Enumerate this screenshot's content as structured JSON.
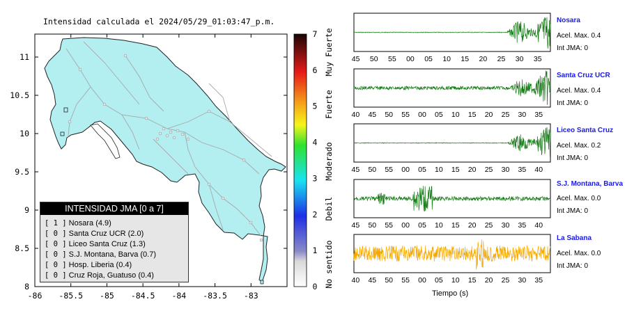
{
  "title": "Intensidad calculada el 2024/05/29_01:03:47_p.m.",
  "colors": {
    "land": "#b3eef0",
    "trace_green": "#137a13",
    "trace_orange": "#f5a800",
    "station_name": "#1a1ae6"
  },
  "colorbar": {
    "ticks": [
      "0",
      "1",
      "2",
      "3",
      "4",
      "5",
      "6",
      "7"
    ],
    "categories": [
      "No sentido",
      "Debil",
      "Moderado",
      "Fuerte",
      "Muy Fuerte"
    ]
  },
  "legend": {
    "header": "INTENSIDAD JMA [0 a 7]",
    "items": [
      {
        "rank": "[ 1 ]",
        "label": "Nosara (4.9)"
      },
      {
        "rank": "[ 0 ]",
        "label": "Santa Cruz UCR (2.0)"
      },
      {
        "rank": "[ 0 ]",
        "label": "Liceo Santa Cruz (1.3)"
      },
      {
        "rank": "[ 0 ]",
        "label": "S.J. Montana, Barva (0.7)"
      },
      {
        "rank": "[ 0 ]",
        "label": "Hosp. Liberia (0.4)"
      },
      {
        "rank": "[ 0 ]",
        "label": "Cruz Roja, Guatuso (0.4)"
      }
    ]
  },
  "stations": [
    {
      "name": "Nosara",
      "acel": "Acel. Max. 0.4",
      "int": "Int JMA: 0",
      "color": "trace_green",
      "ticks": [
        "45",
        "50",
        "55",
        "00",
        "05",
        "10",
        "15",
        "20",
        "25",
        "30",
        "35"
      ]
    },
    {
      "name": "Santa Cruz UCR",
      "acel": "Acel. Max. 0.4",
      "int": "Int JMA: 0",
      "color": "trace_green",
      "ticks": [
        "40",
        "45",
        "50",
        "55",
        "00",
        "05",
        "10",
        "15",
        "20",
        "25",
        "30",
        "35"
      ]
    },
    {
      "name": "Liceo Santa Cruz",
      "acel": "Acel. Max. 0.2",
      "int": "Int JMA: 0",
      "color": "trace_green",
      "ticks": [
        "45",
        "50",
        "55",
        "00",
        "05",
        "10",
        "15",
        "20",
        "25",
        "30",
        "35",
        "40"
      ]
    },
    {
      "name": "S.J. Montana, Barva",
      "acel": "Acel. Max. 0.0",
      "int": "Int JMA: 0",
      "color": "trace_green",
      "ticks": [
        "45",
        "50",
        "55",
        "00",
        "05",
        "10",
        "15",
        "20",
        "25",
        "30",
        "35",
        "40"
      ]
    },
    {
      "name": "La Sabana",
      "acel": "Acel. Max. 0.0",
      "int": "Int JMA: 0",
      "color": "trace_orange",
      "ticks": [
        "40",
        "45",
        "50",
        "55",
        "00",
        "05",
        "10",
        "15",
        "20",
        "25",
        "30",
        "35"
      ]
    }
  ],
  "xaxis_label": "Tiempo (s)",
  "chart_data": [
    {
      "type": "heatmap",
      "title": "Intensidad calculada el 2024/05/29_01:03:47_p.m.",
      "xlim": [
        -86,
        -82.5
      ],
      "ylim": [
        8,
        11.3
      ],
      "x_ticks": [
        "-86",
        "-85.5",
        "-85",
        "-84.5",
        "-84",
        "-83.5",
        "-83"
      ],
      "y_ticks": [
        "8",
        "8.5",
        "9",
        "9.5",
        "10",
        "10.5",
        "11"
      ],
      "colorbar_range": [
        0,
        7
      ],
      "colorbar_ticks": [
        "0",
        "1",
        "2",
        "3",
        "4",
        "5",
        "6",
        "7"
      ],
      "categories": [
        "No sentido",
        "Debil",
        "Moderado",
        "Fuerte",
        "Muy Fuerte"
      ]
    },
    {
      "type": "line",
      "series": [
        {
          "name": "Nosara",
          "acel_max": 0.4,
          "int_jma": 0
        },
        {
          "name": "Santa Cruz UCR",
          "acel_max": 0.4,
          "int_jma": 0
        },
        {
          "name": "Liceo Santa Cruz",
          "acel_max": 0.2,
          "int_jma": 0
        },
        {
          "name": "S.J. Montana, Barva",
          "acel_max": 0.0,
          "int_jma": 0
        },
        {
          "name": "La Sabana",
          "acel_max": 0.0,
          "int_jma": 0
        }
      ],
      "xlabel": "Tiempo (s)"
    }
  ]
}
